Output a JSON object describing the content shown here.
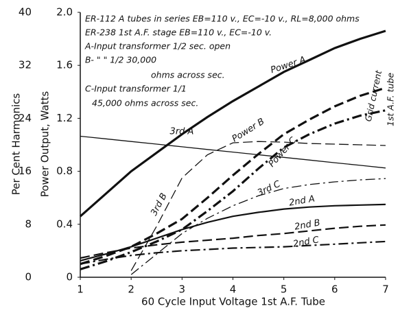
{
  "chart_data": {
    "type": "line",
    "xlabel": "60 Cycle Input Voltage 1st A.F. Tube",
    "ylabel": "Power Output, Watts",
    "y2label": "Per Cent Harmonics",
    "x": [
      1,
      1.5,
      2,
      2.5,
      3,
      3.5,
      4,
      4.5,
      5,
      5.5,
      6,
      6.5,
      7
    ],
    "xlim": [
      1,
      7
    ],
    "xticks": [
      1,
      2,
      3,
      4,
      5,
      6,
      7
    ],
    "ylim": [
      0,
      2
    ],
    "yticks": [
      0,
      0.4,
      0.8,
      1.2,
      1.6,
      {
        "value": 2,
        "label": "2.0"
      }
    ],
    "y2lim": [
      0,
      40
    ],
    "y2ticks": [
      0,
      8,
      16,
      24,
      32,
      40
    ],
    "grid": false,
    "series": [
      {
        "name": "Power A",
        "color": "#111",
        "line_style": "solid",
        "width": 3.2,
        "values": [
          0.46,
          0.63,
          0.8,
          0.94,
          1.08,
          1.21,
          1.33,
          1.44,
          1.55,
          1.64,
          1.73,
          1.8,
          1.86
        ]
      },
      {
        "name": "Power B",
        "color": "#111",
        "line_style": "dashed",
        "width": 3.2,
        "values": [
          0.1,
          0.16,
          0.23,
          0.33,
          0.44,
          0.6,
          0.77,
          0.93,
          1.08,
          1.19,
          1.29,
          1.37,
          1.43
        ]
      },
      {
        "name": "Power C",
        "color": "#111",
        "line_style": "dashdot",
        "width": 3.2,
        "values": [
          0.06,
          0.12,
          0.19,
          0.27,
          0.36,
          0.5,
          0.65,
          0.82,
          0.98,
          1.08,
          1.16,
          1.22,
          1.26
        ]
      },
      {
        "name": "3rd A",
        "color": "#111",
        "line_style": "solid",
        "width": 1.3,
        "axis": "y2",
        "values": [
          21.3,
          20.9,
          20.5,
          20.1,
          19.7,
          19.3,
          18.9,
          18.5,
          18.1,
          17.7,
          17.3,
          16.9,
          16.5
        ]
      },
      {
        "name": "3rd B",
        "color": "#111",
        "line_style": "dashed",
        "width": 1.3,
        "axis": "y2",
        "values": [
          null,
          null,
          1,
          7.7,
          15,
          18.5,
          20.3,
          20.5,
          20.4,
          20.2,
          20.1,
          20,
          19.9
        ]
      },
      {
        "name": "3rd C",
        "color": "#111",
        "line_style": "dashdot",
        "width": 1.3,
        "axis": "y2",
        "values": [
          null,
          null,
          0.4,
          3.5,
          6.6,
          8.9,
          10.8,
          12.3,
          13.4,
          14,
          14.4,
          14.7,
          14.9
        ]
      },
      {
        "name": "2nd A",
        "color": "#111",
        "line_style": "solid",
        "width": 2.2,
        "axis": "y2",
        "values": [
          2.5,
          3.5,
          4.6,
          5.9,
          7.2,
          8.3,
          9.2,
          9.8,
          10.3,
          10.6,
          10.8,
          10.9,
          11
        ]
      },
      {
        "name": "2nd B",
        "color": "#111",
        "line_style": "dashed",
        "width": 2.2,
        "axis": "y2",
        "values": [
          2.9,
          3.7,
          4.4,
          4.9,
          5.3,
          5.6,
          5.9,
          6.3,
          6.6,
          7,
          7.4,
          7.7,
          7.9
        ]
      },
      {
        "name": "2nd C",
        "color": "#111",
        "line_style": "dashdot",
        "width": 2.2,
        "axis": "y2",
        "values": [
          2,
          2.7,
          3.3,
          3.7,
          4,
          4.2,
          4.4,
          4.5,
          4.6,
          4.8,
          5,
          5.2,
          5.4
        ]
      }
    ],
    "annotations": [
      "ER-112 A tubes in series  EB=110 v., EC=-10 v., RL=8,000 ohms",
      "ER-238 1st A.F. stage  EB=110 v., EC=-10 v.",
      "A-Input transformer 1/2 sec. open",
      "B-    \"        \"         1/2 30,000",
      "ohms across sec.",
      "C-Input transformer 1/1",
      "45,000 ohms across sec.",
      "Grid current",
      "1st A.F. tube"
    ]
  }
}
